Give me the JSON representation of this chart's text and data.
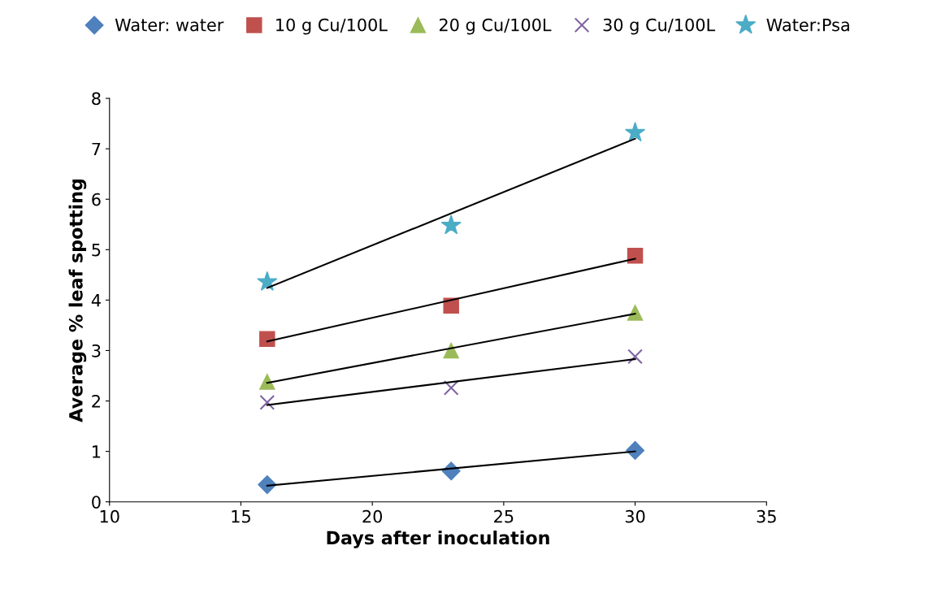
{
  "chart_data": {
    "type": "scatter",
    "xlabel": "Days after inoculation",
    "ylabel": "Average % leaf spotting",
    "xlim": [
      10,
      35
    ],
    "xticks": [
      10,
      15,
      20,
      25,
      30,
      35
    ],
    "ylim": [
      0,
      8
    ],
    "yticks": [
      0,
      1,
      2,
      3,
      4,
      5,
      6,
      7,
      8
    ],
    "grid": false,
    "legend": "top",
    "series": [
      {
        "name": "Water: water",
        "color": "#4f81bd",
        "marker": "diamond",
        "x": [
          16,
          23,
          30
        ],
        "values": [
          0.34,
          0.61,
          1.02
        ]
      },
      {
        "name": "10 g Cu/100L",
        "color": "#c0504d",
        "marker": "square",
        "x": [
          16,
          23,
          30
        ],
        "values": [
          3.23,
          3.89,
          4.88
        ]
      },
      {
        "name": "20 g Cu/100L",
        "color": "#9bbb59",
        "marker": "triangle",
        "x": [
          16,
          23,
          30
        ],
        "values": [
          2.38,
          3.0,
          3.75
        ]
      },
      {
        "name": "30 g Cu/100L",
        "color": "#8064a2",
        "marker": "cross",
        "x": [
          16,
          23,
          30
        ],
        "values": [
          1.97,
          2.26,
          2.88
        ]
      },
      {
        "name": "Water:Psa",
        "color": "#4bacc6",
        "marker": "star",
        "x": [
          16,
          23,
          30
        ],
        "values": [
          4.36,
          5.48,
          7.32
        ]
      },
      {
        "type": "line",
        "color": "#000000",
        "x": [
          16,
          30
        ],
        "values": [
          0.32,
          1.0
        ]
      },
      {
        "type": "line",
        "color": "#000000",
        "x": [
          16,
          30
        ],
        "values": [
          3.18,
          4.82
        ]
      },
      {
        "type": "line",
        "color": "#000000",
        "x": [
          16,
          30
        ],
        "values": [
          2.36,
          3.73
        ]
      },
      {
        "type": "line",
        "color": "#000000",
        "x": [
          16,
          30
        ],
        "values": [
          1.92,
          2.83
        ]
      },
      {
        "type": "line",
        "color": "#000000",
        "x": [
          16,
          30
        ],
        "values": [
          4.24,
          7.2
        ]
      }
    ]
  }
}
